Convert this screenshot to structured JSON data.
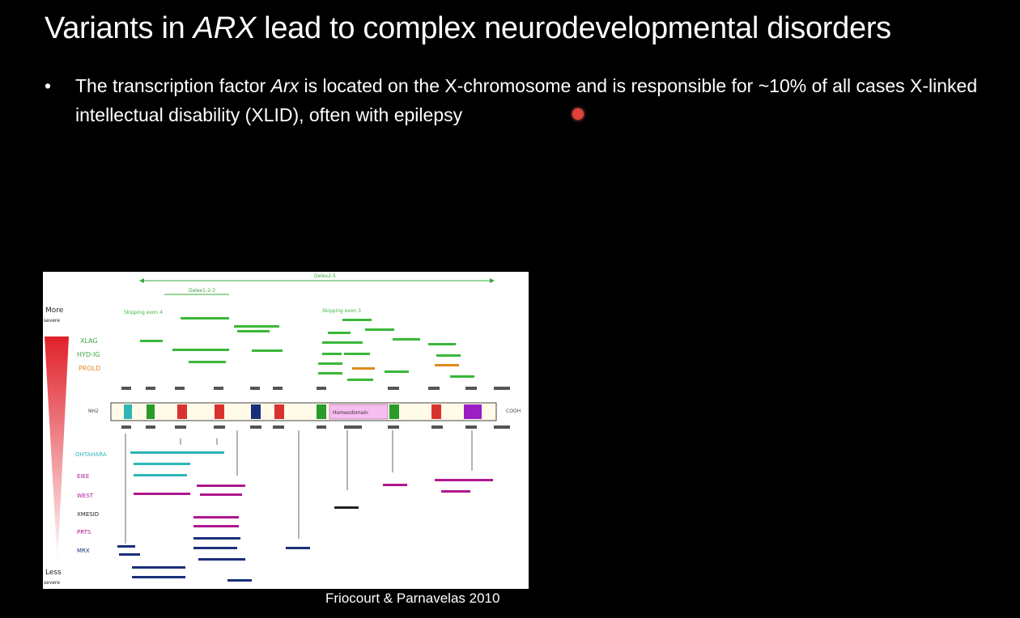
{
  "slide": {
    "title_pre": "Variants in ",
    "title_em": "ARX",
    "title_post": " lead to complex neurodevelopmental disorders",
    "bullet_symbol": "•",
    "bullet_pre": "The transcription factor ",
    "bullet_em": "Arx",
    "bullet_post": " is located on the X-chromosome and is responsible for ~10% of all cases X-linked intellectual disability (XLID), often with epilepsy",
    "citation": "Friocourt & Parnavelas 2010"
  },
  "figure": {
    "severity_top": "More",
    "severity_top_sub": "severe",
    "severity_bottom": "Less",
    "severity_bottom_sub": "severe",
    "top_bar_label": "Delex2-5",
    "sub_bar_label": "Delex1-2-3",
    "phenotypes_top": [
      "XLAG",
      "HYD-IG",
      "PROLD"
    ],
    "phenotypes_bottom": [
      "OHTAHARA",
      "EIEE",
      "WEST",
      "XMESID",
      "PRTS",
      "MRX"
    ],
    "gene_start_label": "NH2",
    "gene_end_label": "COOH",
    "homeodomain_label": "Homeodomain",
    "top_clusters": [
      "Skipping exon 4",
      "Skipping exon 3"
    ],
    "colors": {
      "red": "#d9322e",
      "green": "#2a9a2a",
      "navy": "#1a2f7a",
      "magenta": "#b0178f",
      "cyan": "#2fb5b5",
      "pink": "#f6bdf0",
      "purple": "#9a1ec2",
      "mut_green": "#39b839",
      "orange": "#e08a1c"
    }
  }
}
